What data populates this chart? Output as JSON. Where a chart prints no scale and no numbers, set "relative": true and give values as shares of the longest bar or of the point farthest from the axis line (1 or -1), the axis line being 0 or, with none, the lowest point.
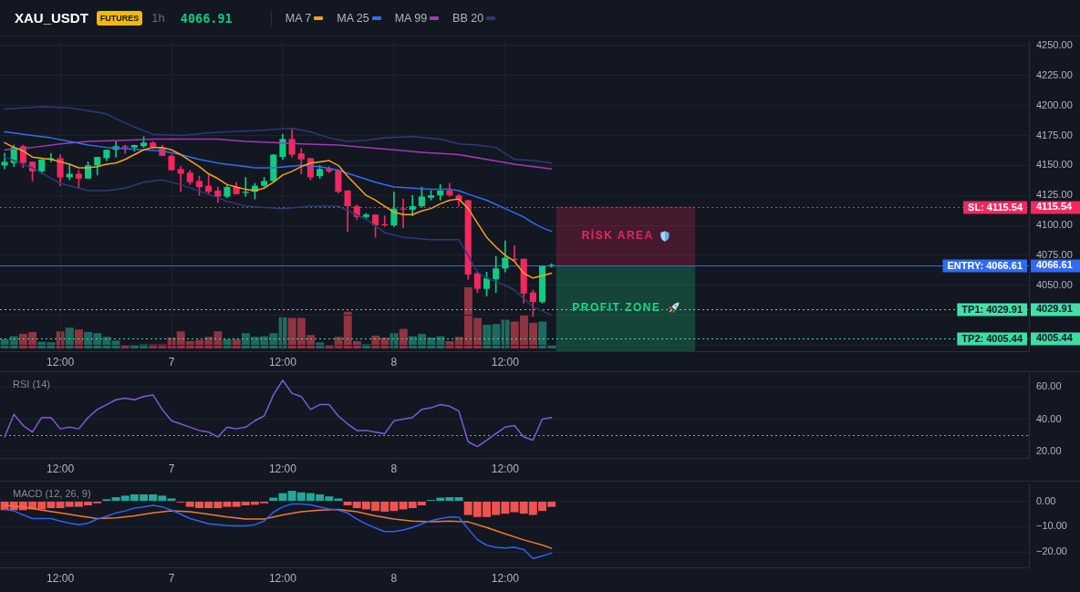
{
  "chart_data": [
    {
      "type": "candlestick",
      "title": "XAU_USDT",
      "annotations": [
        "FUTURES",
        "1h",
        "4066.91"
      ],
      "x": [
        "--11-06T06:00",
        "--11-06T07:00",
        "--11-06T08:00",
        "--11-06T09:00",
        "--11-06T10:00",
        "--11-06T11:00",
        "--11-06T12:00",
        "--11-06T13:00",
        "--11-06T14:00",
        "--11-06T15:00",
        "--11-06T16:00",
        "--11-06T17:00",
        "--11-06T18:00",
        "--11-06T19:00",
        "--11-06T20:00",
        "--11-06T21:00",
        "--11-06T22:00",
        "--11-06T23:00",
        "--11-07T00:00",
        "--11-07T01:00",
        "--11-07T02:00",
        "--11-07T03:00",
        "--11-07T04:00",
        "--11-07T05:00",
        "--11-07T06:00",
        "--11-07T07:00",
        "--11-07T08:00",
        "--11-07T09:00",
        "--11-07T10:00",
        "--11-07T11:00",
        "--11-07T12:00",
        "--11-07T13:00",
        "--11-07T14:00",
        "--11-07T15:00",
        "--11-07T16:00",
        "--11-07T17:00",
        "--11-07T18:00",
        "--11-07T19:00",
        "--11-07T20:00",
        "--11-07T21:00",
        "--11-07T22:00",
        "--11-07T23:00",
        "--11-08T00:00",
        "--11-08T01:00",
        "--11-08T02:00",
        "--11-08T03:00",
        "--11-08T04:00",
        "--11-08T05:00",
        "--11-08T06:00",
        "--11-08T07:00",
        "--11-08T08:00",
        "--11-08T09:00",
        "--11-08T10:00",
        "--11-08T11:00",
        "--11-08T12:00",
        "--11-08T13:00",
        "--11-08T14:00",
        "--11-08T15:00",
        "--11-08T16:00",
        "--11-08T17:00"
      ],
      "ohlc": [
        [
          4150,
          4160,
          4147,
          4153
        ],
        [
          4152,
          4167,
          4149,
          4165
        ],
        [
          4166,
          4167,
          4148,
          4152
        ],
        [
          4153,
          4153,
          4137,
          4145
        ],
        [
          4145,
          4155,
          4143,
          4155
        ],
        [
          4155,
          4160,
          4153,
          4156
        ],
        [
          4156,
          4159,
          4133,
          4140
        ],
        [
          4140,
          4151,
          4138,
          4143
        ],
        [
          4143,
          4146,
          4131,
          4139
        ],
        [
          4139,
          4153,
          4139,
          4150
        ],
        [
          4150,
          4157,
          4142,
          4157
        ],
        [
          4156,
          4163,
          4154,
          4163
        ],
        [
          4163,
          4170,
          4157,
          4166
        ],
        [
          4166,
          4167,
          4160,
          4165
        ],
        [
          4165,
          4167,
          4162,
          4167
        ],
        [
          4166,
          4174,
          4165,
          4169
        ],
        [
          4169,
          4170,
          4164,
          4165
        ],
        [
          4165,
          4167,
          4158,
          4158
        ],
        [
          4158,
          4159,
          4146,
          4146
        ],
        [
          4147,
          4149,
          4128,
          4143
        ],
        [
          4144,
          4146,
          4134,
          4136
        ],
        [
          4137,
          4141,
          4125,
          4132
        ],
        [
          4133,
          4142,
          4126,
          4128
        ],
        [
          4129,
          4132,
          4119,
          4124
        ],
        [
          4124,
          4133,
          4123,
          4132
        ],
        [
          4132,
          4136,
          4126,
          4126
        ],
        [
          4127,
          4140,
          4124,
          4128
        ],
        [
          4128,
          4135,
          4122,
          4133
        ],
        [
          4133,
          4140,
          4132,
          4137
        ],
        [
          4137,
          4159,
          4136,
          4159
        ],
        [
          4157,
          4176,
          4155,
          4172
        ],
        [
          4172,
          4180,
          4157,
          4159
        ],
        [
          4160,
          4164,
          4143,
          4155
        ],
        [
          4156,
          4156,
          4138,
          4140
        ],
        [
          4141,
          4150,
          4139,
          4147
        ],
        [
          4147,
          4149,
          4144,
          4145
        ],
        [
          4146,
          4146,
          4127,
          4128
        ],
        [
          4129,
          4129,
          4095,
          4116
        ],
        [
          4116,
          4117,
          4105,
          4107
        ],
        [
          4107,
          4110,
          4106,
          4109
        ],
        [
          4109,
          4109,
          4090,
          4100
        ],
        [
          4101,
          4108,
          4099,
          4100
        ],
        [
          4100,
          4128,
          4099,
          4114
        ],
        [
          4114,
          4122,
          4098,
          4113
        ],
        [
          4113,
          4125,
          4108,
          4116
        ],
        [
          4116,
          4132,
          4115,
          4124
        ],
        [
          4123,
          4129,
          4121,
          4125
        ],
        [
          4125,
          4134,
          4121,
          4129
        ],
        [
          4129,
          4135,
          4124,
          4125
        ],
        [
          4125,
          4126,
          4116,
          4121
        ],
        [
          4121,
          4121,
          4055,
          4059
        ],
        [
          4060,
          4061,
          4044,
          4047
        ],
        [
          4047,
          4061,
          4041,
          4056
        ],
        [
          4055,
          4074,
          4044,
          4064
        ],
        [
          4064,
          4087,
          4061,
          4073
        ],
        [
          4072,
          4083,
          4070,
          4071
        ],
        [
          4072,
          4072,
          4035,
          4043
        ],
        [
          4044,
          4046,
          4024,
          4036
        ],
        [
          4036,
          4066,
          4035,
          4066
        ],
        [
          4066,
          4068,
          4065,
          4066.91
        ]
      ],
      "colors": [
        "#0ecb81",
        "#0ecb81",
        "#f2285e",
        "#f2285e",
        "#0ecb81",
        "#0ecb81",
        "#f2285e",
        "#0ecb81",
        "#f2285e",
        "#0ecb81",
        "#0ecb81",
        "#0ecb81",
        "#0ecb81",
        "#f2285e",
        "#0ecb81",
        "#0ecb81",
        "#f2285e",
        "#f2285e",
        "#f2285e",
        "#f2285e",
        "#f2285e",
        "#f2285e",
        "#f2285e",
        "#f2285e",
        "#0ecb81",
        "#f2285e",
        "#0ecb81",
        "#0ecb81",
        "#0ecb81",
        "#0ecb81",
        "#0ecb81",
        "#f2285e",
        "#f2285e",
        "#f2285e",
        "#0ecb81",
        "#f2285e",
        "#f2285e",
        "#f2285e",
        "#f2285e",
        "#0ecb81",
        "#f2285e",
        "#f2285e",
        "#0ecb81",
        "#f2285e",
        "#0ecb81",
        "#0ecb81",
        "#0ecb81",
        "#0ecb81",
        "#f2285e",
        "#f2285e",
        "#f2285e",
        "#f2285e",
        "#0ecb81",
        "#0ecb81",
        "#0ecb81",
        "#f2285e",
        "#f2285e",
        "#f2285e",
        "#0ecb81",
        "#0ecb81"
      ],
      "series": [
        {
          "type": "line",
          "name": "MA 7",
          "color": "#f7a21b",
          "values": [
            4169,
            4165,
            4162,
            4157,
            4156,
            4155,
            4153,
            4151,
            4148,
            4148,
            4149,
            4151,
            4152,
            4155,
            4159,
            4163,
            4165,
            4165,
            4163,
            4159,
            4154,
            4149,
            4143,
            4139,
            4134,
            4132,
            4130,
            4129,
            4131,
            4136,
            4142,
            4145,
            4149,
            4152,
            4153,
            4154,
            4150,
            4141,
            4133,
            4125,
            4121,
            4116,
            4111,
            4109,
            4109,
            4112,
            4114,
            4118,
            4121,
            4122,
            4114,
            4102,
            4090,
            4082,
            4075,
            4070,
            4060,
            4056,
            4058,
            4060
          ]
        },
        {
          "type": "line",
          "name": "MA 25",
          "color": "#2f6ff0",
          "x": [
            "--11-06T06:00",
            "--11-06T07:00",
            "--11-06T09:00",
            "--11-06T11:00",
            "--11-06T13:00",
            "--11-06T15:00",
            "--11-06T17:00",
            "--11-06T19:00",
            "--11-06T21:00",
            "--11-06T23:00",
            "--11-07T01:00",
            "--11-07T03:00",
            "--11-07T05:00",
            "--11-07T07:00",
            "--11-07T09:00",
            "--11-07T11:00",
            "--11-07T14:00",
            "--11-07T16:00",
            "--11-07T18:00",
            "--11-07T20:00",
            "--11-07T22:00",
            "--11-08T00:00",
            "--11-08T02:00",
            "--11-08T04:00",
            "--11-08T06:00",
            "--11-08T07:00",
            "--11-08T08:00",
            "--11-08T10:00",
            "--11-08T12:00",
            "--11-08T14:00",
            "--11-08T15:00",
            "--11-08T16:00",
            "--11-08T17:00"
          ],
          "values": [
            4178,
            4177,
            4175,
            4173,
            4170,
            4167,
            4165,
            4164,
            4163,
            4162,
            4159,
            4155,
            4152,
            4150,
            4148,
            4148,
            4150,
            4149,
            4146,
            4141,
            4136,
            4132,
            4131,
            4130,
            4130,
            4129,
            4126,
            4121,
            4114,
            4107,
            4102,
            4098,
            4095
          ]
        },
        {
          "type": "line",
          "name": "MA 99",
          "color": "#a03ab8",
          "x": [
            "--11-06T06:00",
            "--11-06T09:00",
            "--11-06T12:00",
            "--11-06T15:00",
            "--11-06T19:00",
            "--11-06T22:00",
            "--11-07T01:00",
            "--11-07T05:00",
            "--11-07T08:00",
            "--11-07T11:00",
            "--11-07T14:00",
            "--11-07T18:00",
            "--11-07T21:00",
            "--11-08T00:00",
            "--11-08T03:00",
            "--11-08T07:00",
            "--11-08T10:00",
            "--11-08T13:00",
            "--11-08T17:00"
          ],
          "values": [
            4163,
            4165,
            4168,
            4170,
            4171,
            4172,
            4172,
            4172,
            4170,
            4169,
            4168,
            4167,
            4165,
            4163,
            4161,
            4159,
            4155,
            4151,
            4147
          ]
        },
        {
          "type": "line",
          "name": "BB 20",
          "color": "#2c3a78",
          "x": [
            "--11-06T06:00",
            "--11-06T10:00",
            "--11-06T13:00",
            "--11-06T17:00",
            "--11-06T18:00",
            "--11-06T20:00",
            "--11-06T22:00",
            "--11-07T01:00",
            "--11-07T04:00",
            "--11-07T06:00",
            "--11-07T09:00",
            "--11-07T11:00",
            "--11-07T13:00",
            "--11-07T15:00",
            "--11-07T17:00",
            "--11-07T19:00",
            "--11-07T21:00",
            "--11-07T23:00",
            "--11-08T02:00",
            "--11-08T05:00",
            "--11-08T07:00",
            "--11-08T09:00",
            "--11-08T11:00",
            "--11-08T13:00",
            "--11-08T15:00",
            "--11-08T17:00"
          ],
          "values": [
            4197,
            4199,
            4198,
            4193,
            4189,
            4182,
            4176,
            4175,
            4177,
            4178,
            4179,
            4180,
            4181,
            4178,
            4173,
            4170,
            4171,
            4173,
            4174,
            4172,
            4168,
            4167,
            4165,
            4155,
            4154,
            4152
          ]
        },
        {
          "type": "line",
          "color": "#2c3a78",
          "x": [
            "--11-06T06:00",
            "--11-06T09:00",
            "--11-06T12:00",
            "--11-06T15:00",
            "--11-06T17:00",
            "--11-06T19:00",
            "--11-06T21:00",
            "--11-06T23:00",
            "--11-07T01:00",
            "--11-07T04:00",
            "--11-07T06:00",
            "--11-07T08:00",
            "--11-07T12:00",
            "--11-07T15:00",
            "--11-07T18:00",
            "--11-07T21:00",
            "--11-07T23:00",
            "--11-08T01:00",
            "--11-08T04:00",
            "--11-08T07:00",
            "--11-08T08:00",
            "--11-08T09:00",
            "--11-08T10:00",
            "--11-08T12:00",
            "--11-08T13:00",
            "--11-08T15:00",
            "--11-08T17:00"
          ],
          "values": [
            4157,
            4148,
            4135,
            4129,
            4129,
            4131,
            4136,
            4138,
            4134,
            4126,
            4120,
            4116,
            4114,
            4116,
            4116,
            4105,
            4094,
            4090,
            4088,
            4088,
            4075,
            4061,
            4056,
            4050,
            4046,
            4032,
            4025
          ]
        }
      ],
      "xlim": [
        "--11-06T05:30",
        "--11-10T20:30"
      ],
      "xticks": [
        {
          "value": "--11-06T12:00",
          "label": "12:00"
        },
        {
          "value": "--11-07T00:00",
          "label": "7"
        },
        {
          "value": "--11-07T12:00",
          "label": "12:00"
        },
        {
          "value": "--11-08T00:00",
          "label": "8"
        },
        {
          "value": "--11-08T12:00",
          "label": "12:00"
        }
      ],
      "ylim": [
        3995,
        4253
      ],
      "yticks": [
        {
          "value": 4000,
          "label": null
        },
        {
          "value": 4005.44,
          "label": "4005.44"
        },
        {
          "value": 4025,
          "label": null
        },
        {
          "value": 4029.91,
          "label": "4029.91"
        },
        {
          "value": 4050,
          "label": "4050.00"
        },
        {
          "value": 4066.61,
          "label": "4066.61"
        },
        {
          "value": 4075,
          "label": "4075.00"
        },
        {
          "value": 4100,
          "label": "4100.00"
        },
        {
          "value": 4115.54,
          "label": "4115.54"
        },
        {
          "value": 4125,
          "label": "4125.00"
        },
        {
          "value": 4150,
          "label": "4150.00"
        },
        {
          "value": 4175,
          "label": "4175.00"
        },
        {
          "value": 4200,
          "label": "4200.00"
        },
        {
          "value": 4225,
          "label": "4225.00"
        },
        {
          "value": 4250,
          "label": "4250.00"
        }
      ],
      "ref_lines": [
        {
          "axis": "y",
          "value": 4115.54,
          "label": "SL: 4115.54",
          "color": "#f2285e",
          "line_style": "dotted"
        },
        {
          "axis": "y",
          "value": 4066.61,
          "label": "ENTRY: 4066.61",
          "color": "#2f6bf5",
          "line_style": "solid"
        },
        {
          "axis": "y",
          "value": 4029.91,
          "label": "TP1: 4029.91",
          "color": "#45e0a8",
          "line_style": "dotted"
        },
        {
          "axis": "y",
          "value": 4005.44,
          "label": "TP2: 4005.44",
          "color": "#3fdca4",
          "line_style": "dotted"
        }
      ],
      "bands": [
        {
          "axis": "y",
          "from": 4066.61,
          "to": 4115.54,
          "label": "RİSK AREA",
          "color": "#e8265e"
        },
        {
          "axis": "y",
          "from": 3995,
          "to": 4066.61,
          "label": "PROFIT ZONE",
          "color": "#1ed686"
        }
      ],
      "grid": true,
      "legend": "top left",
      "marker": "none"
    },
    {
      "type": "bar",
      "relative": true,
      "categories": [
        null,
        null,
        null,
        null,
        null,
        null,
        null,
        null,
        null,
        null,
        null,
        null,
        null,
        null,
        null,
        null,
        null,
        null,
        null,
        null,
        null,
        null,
        null,
        null,
        null,
        null,
        null,
        null,
        null,
        null,
        null,
        null,
        null,
        null,
        null,
        null,
        null,
        null,
        null,
        null,
        null,
        null,
        null,
        null,
        null,
        null,
        null,
        null,
        null,
        null,
        null,
        null,
        null,
        null,
        null,
        null,
        null,
        null,
        null,
        null
      ],
      "values": [
        0.15,
        0.2,
        0.24,
        0.27,
        0.11,
        0.1,
        0.28,
        0.34,
        0.31,
        0.27,
        0.25,
        0.19,
        0.13,
        0.06,
        0.06,
        0.07,
        0.07,
        0.07,
        0.18,
        0.28,
        0.12,
        0.14,
        0.19,
        0.28,
        0.15,
        0.15,
        0.25,
        0.19,
        0.2,
        0.25,
        0.51,
        0.5,
        0.5,
        0.22,
        0.1,
        0.06,
        0.19,
        0.6,
        0.12,
        0.07,
        0.21,
        0.18,
        0.25,
        0.32,
        0.2,
        0.24,
        0.18,
        0.2,
        0.12,
        0.19,
        1,
        0.5,
        0.39,
        0.4,
        0.47,
        0.44,
        0.55,
        0.42,
        0.44,
        0.05
      ],
      "colors": [
        "#1d6b5f",
        "#1d6b5f",
        "#8f3440",
        "#8f3440",
        "#1d6b5f",
        "#1d6b5f",
        "#8f3440",
        "#1d6b5f",
        "#8f3440",
        "#1d6b5f",
        "#1d6b5f",
        "#1d6b5f",
        "#1d6b5f",
        "#8f3440",
        "#1d6b5f",
        "#1d6b5f",
        "#8f3440",
        "#8f3440",
        "#8f3440",
        "#8f3440",
        "#8f3440",
        "#8f3440",
        "#8f3440",
        "#8f3440",
        "#1d6b5f",
        "#8f3440",
        "#1d6b5f",
        "#1d6b5f",
        "#1d6b5f",
        "#1d6b5f",
        "#1d6b5f",
        "#8f3440",
        "#8f3440",
        "#8f3440",
        "#1d6b5f",
        "#8f3440",
        "#8f3440",
        "#8f3440",
        "#8f3440",
        "#1d6b5f",
        "#8f3440",
        "#8f3440",
        "#1d6b5f",
        "#8f3440",
        "#1d6b5f",
        "#1d6b5f",
        "#1d6b5f",
        "#1d6b5f",
        "#8f3440",
        "#8f3440",
        "#8f3440",
        "#8f3440",
        "#1d6b5f",
        "#1d6b5f",
        "#1d6b5f",
        "#8f3440",
        "#8f3440",
        "#8f3440",
        "#1d6b5f",
        "#1d6b5f"
      ]
    },
    {
      "type": "line",
      "title": "RSI (14)",
      "x": [
        "--11-06T06:00",
        "--11-06T07:00",
        "--11-06T08:00",
        "--11-06T09:00",
        "--11-06T10:00",
        "--11-06T11:00",
        "--11-06T12:00",
        "--11-06T13:00",
        "--11-06T14:00",
        "--11-06T15:00",
        "--11-06T16:00",
        "--11-06T17:00",
        "--11-06T18:00",
        "--11-06T19:00",
        "--11-06T20:00",
        "--11-06T21:00",
        "--11-06T22:00",
        "--11-06T23:00",
        "--11-07T00:00",
        "--11-07T01:00",
        "--11-07T02:00",
        "--11-07T03:00",
        "--11-07T04:00",
        "--11-07T05:00",
        "--11-07T06:00",
        "--11-07T07:00",
        "--11-07T08:00",
        "--11-07T09:00",
        "--11-07T10:00",
        "--11-07T11:00",
        "--11-07T12:00",
        "--11-07T13:00",
        "--11-07T14:00",
        "--11-07T15:00",
        "--11-07T16:00",
        "--11-07T17:00",
        "--11-07T18:00",
        "--11-07T19:00",
        "--11-07T20:00",
        "--11-07T21:00",
        "--11-07T22:00",
        "--11-07T23:00",
        "--11-08T00:00",
        "--11-08T01:00",
        "--11-08T02:00",
        "--11-08T03:00",
        "--11-08T04:00",
        "--11-08T05:00",
        "--11-08T06:00",
        "--11-08T07:00",
        "--11-08T08:00",
        "--11-08T09:00",
        "--11-08T10:00",
        "--11-08T11:00",
        "--11-08T12:00",
        "--11-08T13:00",
        "--11-08T14:00",
        "--11-08T15:00",
        "--11-08T16:00",
        "--11-08T17:00"
      ],
      "series": [
        {
          "color": "#7e5bd6",
          "values": [
            29,
            43,
            36,
            32,
            41,
            41,
            34,
            35,
            34,
            41,
            46,
            49,
            52,
            53,
            52,
            54,
            55,
            46,
            39,
            37,
            35,
            33,
            32,
            29,
            35,
            34,
            35,
            39,
            42,
            55,
            64,
            56,
            54,
            46,
            49,
            49,
            42,
            37,
            33,
            33,
            32,
            31,
            39,
            40,
            41,
            46,
            47,
            49,
            48,
            45,
            26,
            23,
            27,
            31,
            35,
            36,
            29,
            27,
            40,
            41
          ]
        }
      ],
      "xlim": [
        "--11-06T05:30",
        "--11-10T20:30"
      ],
      "xticks": [
        {
          "value": "--11-06T12:00",
          "label": "12:00"
        },
        {
          "value": "--11-07T00:00",
          "label": "7"
        },
        {
          "value": "--11-07T12:00",
          "label": "12:00"
        },
        {
          "value": "--11-08T00:00",
          "label": "8"
        },
        {
          "value": "--11-08T12:00",
          "label": "12:00"
        }
      ],
      "ylim": [
        16,
        68.5
      ],
      "yticks": [
        {
          "value": 20,
          "label": "20.00"
        },
        {
          "value": 40,
          "label": "40.00"
        },
        {
          "value": 60,
          "label": "60.00"
        }
      ],
      "ref_lines": [
        {
          "axis": "y",
          "value": 30,
          "color": "#9598a1",
          "line_style": "dotted"
        }
      ],
      "grid": "y",
      "marker": "none"
    },
    {
      "type": "bar",
      "title": "MACD (12, 26, 9)",
      "x": [
        "--11-06T06:00",
        "--11-06T07:00",
        "--11-06T08:00",
        "--11-06T09:00",
        "--11-06T10:00",
        "--11-06T11:00",
        "--11-06T12:00",
        "--11-06T13:00",
        "--11-06T14:00",
        "--11-06T15:00",
        "--11-06T16:00",
        "--11-06T17:00",
        "--11-06T18:00",
        "--11-06T19:00",
        "--11-06T20:00",
        "--11-06T21:00",
        "--11-06T22:00",
        "--11-06T23:00",
        "--11-07T00:00",
        "--11-07T01:00",
        "--11-07T02:00",
        "--11-07T03:00",
        "--11-07T04:00",
        "--11-07T05:00",
        "--11-07T06:00",
        "--11-07T07:00",
        "--11-07T08:00",
        "--11-07T09:00",
        "--11-07T10:00",
        "--11-07T11:00",
        "--11-07T12:00",
        "--11-07T13:00",
        "--11-07T14:00",
        "--11-07T15:00",
        "--11-07T16:00",
        "--11-07T17:00",
        "--11-07T18:00",
        "--11-07T19:00",
        "--11-07T20:00",
        "--11-07T21:00",
        "--11-07T22:00",
        "--11-07T23:00",
        "--11-08T00:00",
        "--11-08T01:00",
        "--11-08T02:00",
        "--11-08T03:00",
        "--11-08T04:00",
        "--11-08T05:00",
        "--11-08T06:00",
        "--11-08T07:00",
        "--11-08T08:00",
        "--11-08T09:00",
        "--11-08T10:00",
        "--11-08T11:00",
        "--11-08T12:00",
        "--11-08T13:00",
        "--11-08T14:00",
        "--11-08T15:00",
        "--11-08T16:00",
        "--11-08T17:00"
      ],
      "series": [
        {
          "colors": [
            "#ef5350",
            "#ef5350",
            "#ef5350",
            "#ef5350",
            "#ef5350",
            "#ef5350",
            "#ef5350",
            "#ef5350",
            "#ef5350",
            "#ef5350",
            "#ef5350",
            "#26a69a",
            "#26a69a",
            "#26a69a",
            "#26a69a",
            "#26a69a",
            "#26a69a",
            "#26a69a",
            "#26a69a",
            "#ef5350",
            "#ef5350",
            "#ef5350",
            "#ef5350",
            "#ef5350",
            "#ef5350",
            "#ef5350",
            "#ef5350",
            "#ef5350",
            "#ef5350",
            "#26a69a",
            "#26a69a",
            "#26a69a",
            "#26a69a",
            "#26a69a",
            "#26a69a",
            "#26a69a",
            "#26a69a",
            "#ef5350",
            "#ef5350",
            "#ef5350",
            "#ef5350",
            "#ef5350",
            "#ef5350",
            "#ef5350",
            "#ef5350",
            "#ef5350",
            "#26a69a",
            "#26a69a",
            "#26a69a",
            "#26a69a",
            "#ef5350",
            "#ef5350",
            "#ef5350",
            "#ef5350",
            "#ef5350",
            "#ef5350",
            "#ef5350",
            "#ef5350",
            "#ef5350",
            "#ef5350"
          ],
          "values": [
            -3.5,
            -3.5,
            -3.5,
            -3.2,
            -3.2,
            -2.7,
            -2.7,
            -2.2,
            -2.2,
            -1.6,
            -0.8,
            0.8,
            1.6,
            2.2,
            2.7,
            2.7,
            2.7,
            2.2,
            1.1,
            -0.5,
            -2.2,
            -2.7,
            -2.7,
            -2.7,
            -2.2,
            -2.2,
            -1.6,
            -1.4,
            -0.8,
            1.4,
            3.2,
            4.1,
            3.5,
            3.2,
            2.7,
            1.9,
            1.1,
            -1.6,
            -2.7,
            -3.2,
            -3.8,
            -4.1,
            -3.8,
            -3.2,
            -2.7,
            -1.6,
            0.5,
            1.4,
            1.6,
            1.6,
            -5.4,
            -6.2,
            -6.2,
            -5.4,
            -4.9,
            -4.3,
            -4.9,
            -5.4,
            -3.8,
            -2.2
          ]
        },
        {
          "type": "line",
          "color": "#2d62f0",
          "values": [
            -3.2,
            -3.8,
            -5.4,
            -6.8,
            -6.8,
            -6.8,
            -7.8,
            -8.6,
            -9.2,
            -8.6,
            -7.0,
            -5.9,
            -4.6,
            -3.8,
            -2.7,
            -2.2,
            -1.6,
            -2.2,
            -3.5,
            -5.1,
            -6.8,
            -7.8,
            -8.9,
            -9.2,
            -9.5,
            -9.7,
            -9.7,
            -9.2,
            -7.8,
            -4.3,
            -2.2,
            -1.1,
            -1.1,
            -1.4,
            -2.2,
            -3.0,
            -3.5,
            -4.6,
            -7.0,
            -8.9,
            -10.5,
            -11.9,
            -11.9,
            -11.3,
            -10.3,
            -8.9,
            -7.6,
            -6.8,
            -6.2,
            -6.3,
            -10.8,
            -15.1,
            -17.3,
            -18.1,
            -18.4,
            -18.1,
            -19.0,
            -22.5,
            -21.5,
            -20.4
          ]
        },
        {
          "type": "line",
          "color": "#f07a28",
          "x": [
            "--11-06T06:00",
            "--11-06T08:00",
            "--11-06T10:00",
            "--11-06T12:00",
            "--11-06T14:00",
            "--11-06T16:00",
            "--11-06T18:00",
            "--11-06T20:00",
            "--11-06T22:00",
            "--11-07T00:00",
            "--11-07T02:00",
            "--11-07T04:00",
            "--11-07T06:00",
            "--11-07T08:00",
            "--11-07T10:00",
            "--11-07T12:00",
            "--11-07T14:00",
            "--11-07T16:00",
            "--11-07T18:00",
            "--11-07T20:00",
            "--11-07T22:00",
            "--11-08T00:00",
            "--11-08T02:00",
            "--11-08T04:00",
            "--11-08T06:00",
            "--11-08T08:00",
            "--11-08T10:00",
            "--11-08T12:00",
            "--11-08T14:00",
            "--11-08T16:00",
            "--11-08T17:00"
          ],
          "values": [
            -1.6,
            -2.2,
            -3.5,
            -4.6,
            -5.7,
            -6.8,
            -6.5,
            -5.7,
            -4.6,
            -3.8,
            -4.1,
            -5.1,
            -6.2,
            -7.0,
            -7.0,
            -5.4,
            -4.1,
            -3.5,
            -3.2,
            -4.1,
            -5.7,
            -7.0,
            -7.8,
            -8.1,
            -7.8,
            -8.1,
            -10.3,
            -12.8,
            -15.2,
            -17.2,
            -18.5
          ]
        }
      ],
      "xlim": [
        "--11-06T05:30",
        "--11-10T20:30"
      ],
      "xticks": [
        {
          "value": "--11-06T12:00",
          "label": "12:00"
        },
        {
          "value": "--11-07T00:00",
          "label": "7"
        },
        {
          "value": "--11-07T12:00",
          "label": "12:00"
        },
        {
          "value": "--11-08T00:00",
          "label": "8"
        },
        {
          "value": "--11-08T12:00",
          "label": "12:00"
        }
      ],
      "ylim": [
        -26,
        7
      ],
      "yticks": [
        {
          "value": -20,
          "label": "−20.00"
        },
        {
          "value": -10,
          "label": "−10.00"
        },
        {
          "value": 0,
          "label": "0.00"
        }
      ],
      "grid": "y",
      "marker": "none"
    }
  ]
}
